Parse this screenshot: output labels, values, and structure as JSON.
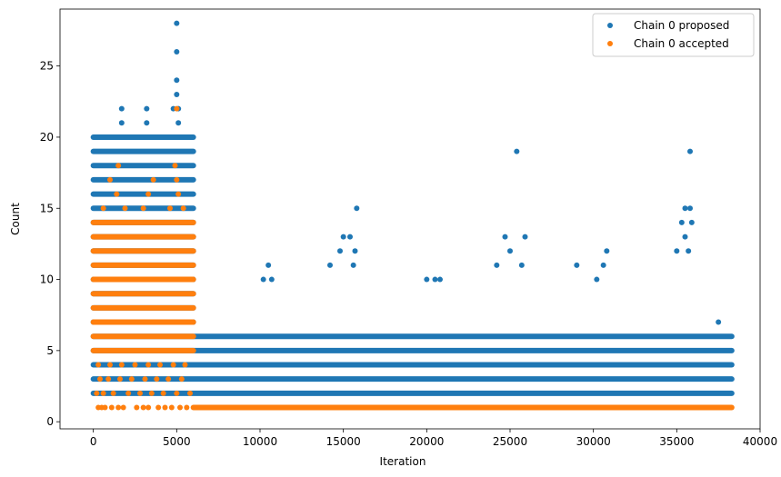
{
  "chart_data": {
    "type": "scatter",
    "title": "",
    "xlabel": "Iteration",
    "ylabel": "Count",
    "xlim": [
      -2000,
      40000
    ],
    "ylim": [
      -0.5,
      29
    ],
    "xticks": [
      0,
      5000,
      10000,
      15000,
      20000,
      25000,
      30000,
      35000,
      40000
    ],
    "yticks": [
      0,
      5,
      10,
      15,
      20,
      25
    ],
    "legend_position": "top-right",
    "grid": false,
    "series": [
      {
        "name": "Chain 0 proposed",
        "color": "#1f77b4",
        "bands": [
          {
            "y": 2,
            "x0": 0,
            "x1": 38300
          },
          {
            "y": 3,
            "x0": 0,
            "x1": 38300
          },
          {
            "y": 4,
            "x0": 0,
            "x1": 38300
          },
          {
            "y": 5,
            "x0": 0,
            "x1": 38300
          },
          {
            "y": 6,
            "x0": 0,
            "x1": 38300
          },
          {
            "y": 7,
            "x0": 0,
            "x1": 6000
          },
          {
            "y": 8,
            "x0": 0,
            "x1": 6000
          },
          {
            "y": 9,
            "x0": 0,
            "x1": 6000
          },
          {
            "y": 10,
            "x0": 0,
            "x1": 6000
          },
          {
            "y": 11,
            "x0": 0,
            "x1": 6000
          },
          {
            "y": 12,
            "x0": 0,
            "x1": 6000
          },
          {
            "y": 13,
            "x0": 0,
            "x1": 6000
          },
          {
            "y": 14,
            "x0": 0,
            "x1": 6000
          },
          {
            "y": 15,
            "x0": 0,
            "x1": 6000
          },
          {
            "y": 16,
            "x0": 0,
            "x1": 6000
          },
          {
            "y": 17,
            "x0": 0,
            "x1": 6000
          },
          {
            "y": 18,
            "x0": 0,
            "x1": 6000
          },
          {
            "y": 19,
            "x0": 0,
            "x1": 6000
          },
          {
            "y": 20,
            "x0": 0,
            "x1": 6000
          }
        ],
        "points": [
          {
            "x": 1700,
            "y": 22
          },
          {
            "x": 1700,
            "y": 21
          },
          {
            "x": 3200,
            "y": 22
          },
          {
            "x": 3200,
            "y": 21
          },
          {
            "x": 4800,
            "y": 22
          },
          {
            "x": 5000,
            "y": 28
          },
          {
            "x": 5000,
            "y": 26
          },
          {
            "x": 5000,
            "y": 24
          },
          {
            "x": 5000,
            "y": 23
          },
          {
            "x": 5100,
            "y": 22
          },
          {
            "x": 5100,
            "y": 21
          },
          {
            "x": 10500,
            "y": 11
          },
          {
            "x": 10200,
            "y": 10
          },
          {
            "x": 10700,
            "y": 10
          },
          {
            "x": 15000,
            "y": 13
          },
          {
            "x": 15400,
            "y": 13
          },
          {
            "x": 15800,
            "y": 15
          },
          {
            "x": 15700,
            "y": 12
          },
          {
            "x": 14200,
            "y": 11
          },
          {
            "x": 15600,
            "y": 11
          },
          {
            "x": 14800,
            "y": 12
          },
          {
            "x": 20000,
            "y": 10
          },
          {
            "x": 20500,
            "y": 10
          },
          {
            "x": 20800,
            "y": 10
          },
          {
            "x": 25400,
            "y": 19
          },
          {
            "x": 24700,
            "y": 13
          },
          {
            "x": 25900,
            "y": 13
          },
          {
            "x": 24200,
            "y": 11
          },
          {
            "x": 25700,
            "y": 11
          },
          {
            "x": 25000,
            "y": 12
          },
          {
            "x": 30800,
            "y": 12
          },
          {
            "x": 29000,
            "y": 11
          },
          {
            "x": 30600,
            "y": 11
          },
          {
            "x": 30200,
            "y": 10
          },
          {
            "x": 35800,
            "y": 19
          },
          {
            "x": 35500,
            "y": 15
          },
          {
            "x": 35800,
            "y": 15
          },
          {
            "x": 35300,
            "y": 14
          },
          {
            "x": 35900,
            "y": 14
          },
          {
            "x": 35500,
            "y": 13
          },
          {
            "x": 35000,
            "y": 12
          },
          {
            "x": 35700,
            "y": 12
          },
          {
            "x": 37500,
            "y": 7
          }
        ]
      },
      {
        "name": "Chain 0 accepted",
        "color": "#ff7f0e",
        "bands": [
          {
            "y": 1,
            "x0": 6000,
            "x1": 38300
          },
          {
            "y": 5,
            "x0": 0,
            "x1": 6000
          },
          {
            "y": 6,
            "x0": 0,
            "x1": 6000
          },
          {
            "y": 7,
            "x0": 0,
            "x1": 6000
          },
          {
            "y": 8,
            "x0": 0,
            "x1": 6000
          },
          {
            "y": 9,
            "x0": 0,
            "x1": 6000
          },
          {
            "y": 10,
            "x0": 0,
            "x1": 6000
          },
          {
            "y": 11,
            "x0": 0,
            "x1": 6000
          },
          {
            "y": 12,
            "x0": 0,
            "x1": 6000
          },
          {
            "y": 13,
            "x0": 0,
            "x1": 6000
          },
          {
            "y": 14,
            "x0": 0,
            "x1": 6000
          }
        ],
        "points": [
          {
            "x": 300,
            "y": 1
          },
          {
            "x": 500,
            "y": 1
          },
          {
            "x": 700,
            "y": 1
          },
          {
            "x": 1100,
            "y": 1
          },
          {
            "x": 1500,
            "y": 1
          },
          {
            "x": 1800,
            "y": 1
          },
          {
            "x": 2600,
            "y": 1
          },
          {
            "x": 3000,
            "y": 1
          },
          {
            "x": 3300,
            "y": 1
          },
          {
            "x": 3900,
            "y": 1
          },
          {
            "x": 4300,
            "y": 1
          },
          {
            "x": 4700,
            "y": 1
          },
          {
            "x": 5200,
            "y": 1
          },
          {
            "x": 5600,
            "y": 1
          },
          {
            "x": 200,
            "y": 2
          },
          {
            "x": 600,
            "y": 2
          },
          {
            "x": 1200,
            "y": 2
          },
          {
            "x": 2100,
            "y": 2
          },
          {
            "x": 2800,
            "y": 2
          },
          {
            "x": 3500,
            "y": 2
          },
          {
            "x": 4200,
            "y": 2
          },
          {
            "x": 5000,
            "y": 2
          },
          {
            "x": 5800,
            "y": 2
          },
          {
            "x": 400,
            "y": 3
          },
          {
            "x": 900,
            "y": 3
          },
          {
            "x": 1600,
            "y": 3
          },
          {
            "x": 2300,
            "y": 3
          },
          {
            "x": 3100,
            "y": 3
          },
          {
            "x": 3800,
            "y": 3
          },
          {
            "x": 4500,
            "y": 3
          },
          {
            "x": 5300,
            "y": 3
          },
          {
            "x": 300,
            "y": 4
          },
          {
            "x": 1000,
            "y": 4
          },
          {
            "x": 1700,
            "y": 4
          },
          {
            "x": 2500,
            "y": 4
          },
          {
            "x": 3300,
            "y": 4
          },
          {
            "x": 4000,
            "y": 4
          },
          {
            "x": 4800,
            "y": 4
          },
          {
            "x": 5500,
            "y": 4
          },
          {
            "x": 600,
            "y": 15
          },
          {
            "x": 1900,
            "y": 15
          },
          {
            "x": 3000,
            "y": 15
          },
          {
            "x": 4600,
            "y": 15
          },
          {
            "x": 5400,
            "y": 15
          },
          {
            "x": 1400,
            "y": 16
          },
          {
            "x": 3300,
            "y": 16
          },
          {
            "x": 5100,
            "y": 16
          },
          {
            "x": 1000,
            "y": 17
          },
          {
            "x": 3600,
            "y": 17
          },
          {
            "x": 5000,
            "y": 17
          },
          {
            "x": 1500,
            "y": 18
          },
          {
            "x": 4900,
            "y": 18
          },
          {
            "x": 5000,
            "y": 22
          }
        ]
      }
    ]
  }
}
